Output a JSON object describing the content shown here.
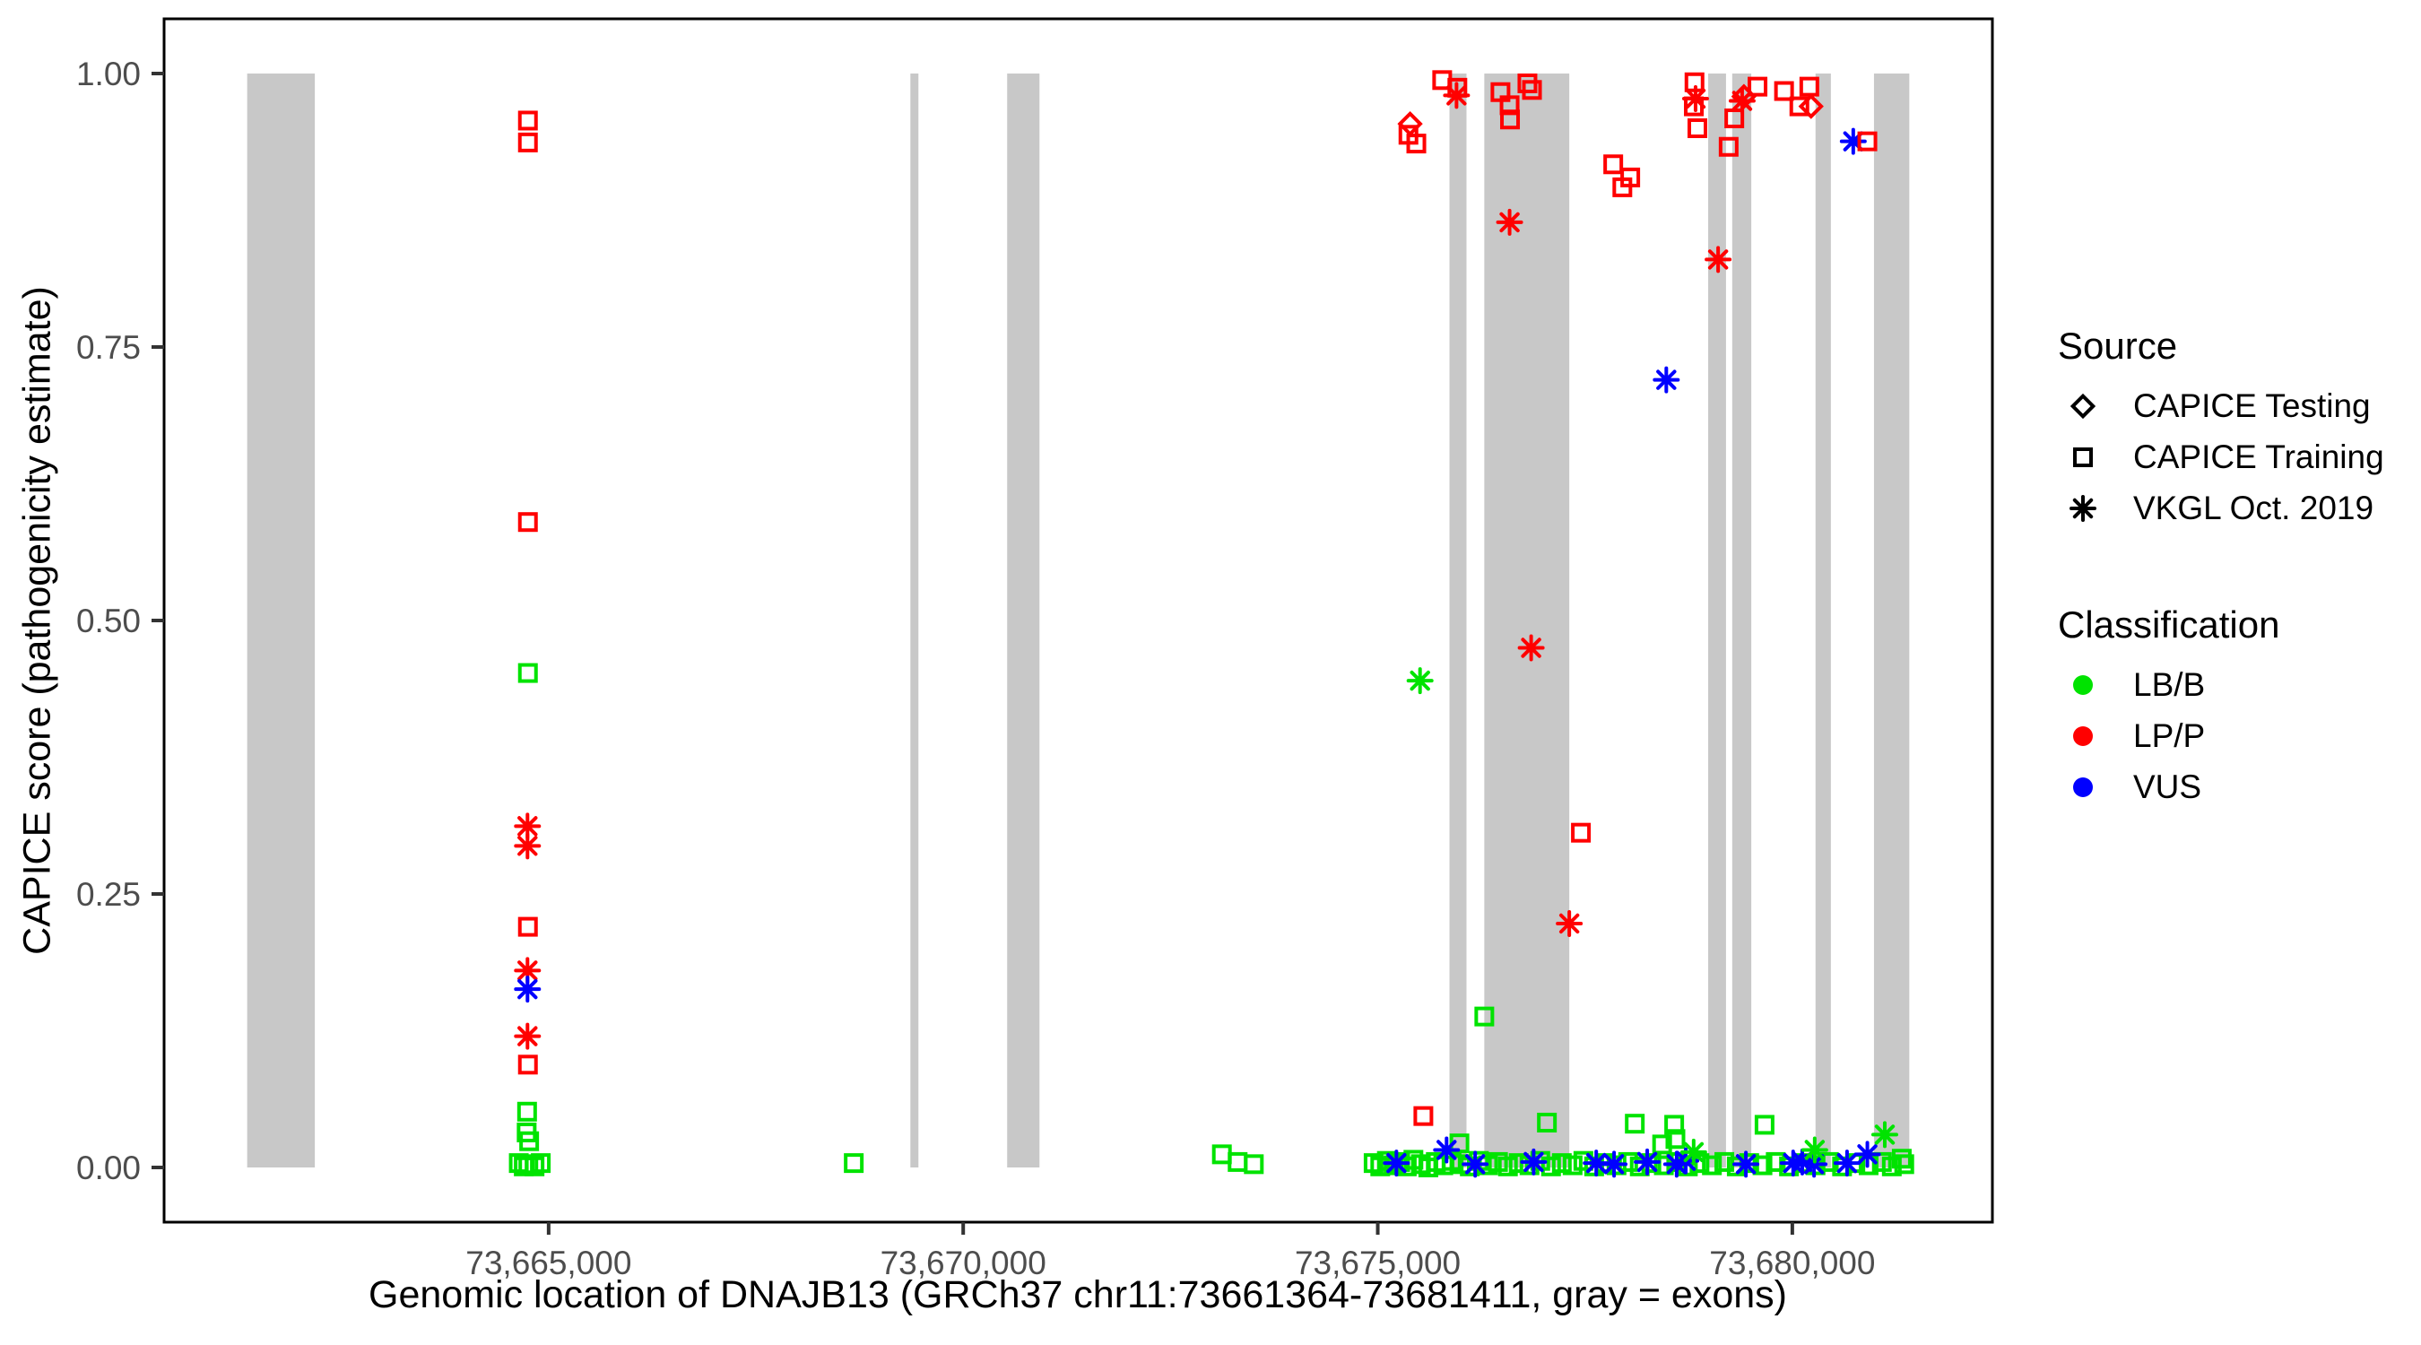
{
  "chart_data": {
    "type": "scatter",
    "title": "",
    "xlabel": "Genomic location of DNAJB13 (GRCh37 chr11:73661364-73681411, gray = exons)",
    "ylabel": "CAPICE score (pathogenicity estimate)",
    "grid": false,
    "x_range": [
      73660362,
      73682413
    ],
    "y_range": [
      -0.05,
      1.05
    ],
    "x_ticks": [
      {
        "label": "73,665,000",
        "value": 73665000
      },
      {
        "label": "73,670,000",
        "value": 73670000
      },
      {
        "label": "73,675,000",
        "value": 73675000
      },
      {
        "label": "73,680,000",
        "value": 73680000
      }
    ],
    "y_ticks": [
      {
        "label": "0.00",
        "value": 0.0
      },
      {
        "label": "0.25",
        "value": 0.25
      },
      {
        "label": "0.50",
        "value": 0.5
      },
      {
        "label": "0.75",
        "value": 0.75
      },
      {
        "label": "1.00",
        "value": 1.0
      }
    ],
    "exon_color": "#C8C8C8",
    "exons": [
      [
        73661364,
        73662180
      ],
      [
        73669363,
        73669460
      ],
      [
        73670530,
        73670920
      ],
      [
        73675865,
        73676070
      ],
      [
        73676285,
        73677310
      ],
      [
        73678985,
        73679200
      ],
      [
        73679275,
        73679505
      ],
      [
        73680280,
        73680465
      ],
      [
        73680985,
        73681411
      ]
    ],
    "class_colors": {
      "LB/B": "#00E300",
      "LP/P": "#FF0000",
      "VUS": "#0000FF"
    },
    "series_columns": [
      "genomic_position",
      "capice_score",
      "marker",
      "classification"
    ],
    "points": [
      [
        73664750,
        0.957,
        "square",
        "LP/P"
      ],
      [
        73664750,
        0.937,
        "square",
        "LP/P"
      ],
      [
        73664750,
        0.59,
        "square",
        "LP/P"
      ],
      [
        73664750,
        0.452,
        "square",
        "LB/B"
      ],
      [
        73664745,
        0.312,
        "asterisk",
        "LP/P"
      ],
      [
        73664745,
        0.294,
        "asterisk",
        "LP/P"
      ],
      [
        73664750,
        0.22,
        "square",
        "LP/P"
      ],
      [
        73664745,
        0.18,
        "asterisk",
        "LP/P"
      ],
      [
        73664745,
        0.163,
        "asterisk",
        "VUS"
      ],
      [
        73664745,
        0.12,
        "asterisk",
        "LP/P"
      ],
      [
        73664750,
        0.094,
        "square",
        "LP/P"
      ],
      [
        73664740,
        0.051,
        "square",
        "LB/B"
      ],
      [
        73664735,
        0.032,
        "square",
        "LB/B"
      ],
      [
        73664765,
        0.024,
        "square",
        "LB/B"
      ],
      [
        73664640,
        0.004,
        "square",
        "LB/B"
      ],
      [
        73664700,
        0.001,
        "square",
        "LB/B"
      ],
      [
        73664755,
        0.003,
        "square",
        "LB/B"
      ],
      [
        73664830,
        0.001,
        "square",
        "LB/B"
      ],
      [
        73664905,
        0.004,
        "square",
        "LB/B"
      ],
      [
        73668680,
        0.004,
        "square",
        "LB/B"
      ],
      [
        73673120,
        0.012,
        "square",
        "LB/B"
      ],
      [
        73673310,
        0.005,
        "square",
        "LB/B"
      ],
      [
        73673505,
        0.003,
        "square",
        "LB/B"
      ],
      [
        73675390,
        0.954,
        "diamond",
        "LP/P"
      ],
      [
        73675370,
        0.944,
        "square",
        "LP/P"
      ],
      [
        73675465,
        0.936,
        "square",
        "LP/P"
      ],
      [
        73675777,
        0.994,
        "square",
        "LP/P"
      ],
      [
        73675960,
        0.987,
        "square",
        "LP/P"
      ],
      [
        73675950,
        0.98,
        "asterisk",
        "LP/P"
      ],
      [
        73676480,
        0.983,
        "square",
        "LP/P"
      ],
      [
        73676590,
        0.971,
        "square",
        "LP/P"
      ],
      [
        73676595,
        0.958,
        "square",
        "LP/P"
      ],
      [
        73676805,
        0.991,
        "square",
        "LP/P"
      ],
      [
        73676860,
        0.985,
        "square",
        "LP/P"
      ],
      [
        73676590,
        0.864,
        "asterisk",
        "LP/P"
      ],
      [
        73676850,
        0.475,
        "asterisk",
        "LP/P"
      ],
      [
        73675510,
        0.445,
        "asterisk",
        "LB/B"
      ],
      [
        73677450,
        0.306,
        "square",
        "LP/P"
      ],
      [
        73677310,
        0.223,
        "asterisk",
        "LP/P"
      ],
      [
        73676285,
        0.138,
        "square",
        "LB/B"
      ],
      [
        73675550,
        0.047,
        "square",
        "LP/P"
      ],
      [
        73677840,
        0.917,
        "square",
        "LP/P"
      ],
      [
        73677950,
        0.896,
        "square",
        "LP/P"
      ],
      [
        73678045,
        0.905,
        "square",
        "LP/P"
      ],
      [
        73678480,
        0.72,
        "asterisk",
        "VUS"
      ],
      [
        73678820,
        0.992,
        "square",
        "LP/P"
      ],
      [
        73678833,
        0.977,
        "asterisk",
        "LP/P"
      ],
      [
        73678812,
        0.97,
        "square",
        "LP/P"
      ],
      [
        73678855,
        0.95,
        "square",
        "LP/P"
      ],
      [
        73679232,
        0.933,
        "square",
        "LP/P"
      ],
      [
        73679300,
        0.959,
        "square",
        "LP/P"
      ],
      [
        73679395,
        0.975,
        "asterisk",
        "LP/P"
      ],
      [
        73679416,
        0.979,
        "diamond",
        "LP/P"
      ],
      [
        73679580,
        0.988,
        "square",
        "LP/P"
      ],
      [
        73679105,
        0.83,
        "asterisk",
        "LP/P"
      ],
      [
        73679900,
        0.984,
        "square",
        "LP/P"
      ],
      [
        73680085,
        0.97,
        "square",
        "LP/P"
      ],
      [
        73680205,
        0.988,
        "square",
        "LP/P"
      ],
      [
        73680226,
        0.97,
        "diamond",
        "LP/P"
      ],
      [
        73680735,
        0.938,
        "asterisk",
        "VUS"
      ],
      [
        73680905,
        0.938,
        "square",
        "LP/P"
      ],
      [
        73674950,
        0.004,
        "square",
        "LB/B"
      ],
      [
        73675030,
        0.001,
        "square",
        "LB/B"
      ],
      [
        73675110,
        0.006,
        "square",
        "LB/B"
      ],
      [
        73675190,
        0.002,
        "square",
        "LB/B"
      ],
      [
        73675270,
        0.005,
        "square",
        "LB/B"
      ],
      [
        73675350,
        0.001,
        "square",
        "LB/B"
      ],
      [
        73675430,
        0.007,
        "square",
        "LB/B"
      ],
      [
        73675520,
        0.003,
        "square",
        "LB/B"
      ],
      [
        73675610,
        0.0,
        "square",
        "LB/B"
      ],
      [
        73675700,
        0.005,
        "square",
        "LB/B"
      ],
      [
        73675790,
        0.002,
        "square",
        "LB/B"
      ],
      [
        73675890,
        0.006,
        "square",
        "LB/B"
      ],
      [
        73675985,
        0.022,
        "square",
        "LB/B"
      ],
      [
        73676000,
        0.003,
        "square",
        "LB/B"
      ],
      [
        73676110,
        0.001,
        "square",
        "LB/B"
      ],
      [
        73676220,
        0.006,
        "square",
        "LB/B"
      ],
      [
        73676330,
        0.002,
        "square",
        "LB/B"
      ],
      [
        73676450,
        0.005,
        "square",
        "LB/B"
      ],
      [
        73676570,
        0.001,
        "square",
        "LB/B"
      ],
      [
        73676700,
        0.004,
        "square",
        "LB/B"
      ],
      [
        73676830,
        0.002,
        "square",
        "LB/B"
      ],
      [
        73676960,
        0.006,
        "square",
        "LB/B"
      ],
      [
        73677040,
        0.041,
        "square",
        "LB/B"
      ],
      [
        73677090,
        0.001,
        "square",
        "LB/B"
      ],
      [
        73677220,
        0.004,
        "square",
        "LB/B"
      ],
      [
        73677350,
        0.002,
        "square",
        "LB/B"
      ],
      [
        73677480,
        0.006,
        "square",
        "LB/B"
      ],
      [
        73677610,
        0.001,
        "square",
        "LB/B"
      ],
      [
        73677740,
        0.004,
        "square",
        "LB/B"
      ],
      [
        73677880,
        0.002,
        "square",
        "LB/B"
      ],
      [
        73678020,
        0.005,
        "square",
        "LB/B"
      ],
      [
        73678100,
        0.04,
        "square",
        "LB/B"
      ],
      [
        73678160,
        0.001,
        "square",
        "LB/B"
      ],
      [
        73678300,
        0.004,
        "square",
        "LB/B"
      ],
      [
        73678430,
        0.021,
        "square",
        "LB/B"
      ],
      [
        73678450,
        0.002,
        "square",
        "LB/B"
      ],
      [
        73678575,
        0.039,
        "square",
        "LB/B"
      ],
      [
        73678590,
        0.026,
        "square",
        "LB/B"
      ],
      [
        73678600,
        0.005,
        "square",
        "LB/B"
      ],
      [
        73678740,
        0.001,
        "square",
        "LB/B"
      ],
      [
        73678880,
        0.004,
        "square",
        "LB/B"
      ],
      [
        73679030,
        0.002,
        "square",
        "LB/B"
      ],
      [
        73679180,
        0.005,
        "square",
        "LB/B"
      ],
      [
        73679330,
        0.001,
        "square",
        "LB/B"
      ],
      [
        73679480,
        0.004,
        "square",
        "LB/B"
      ],
      [
        73679640,
        0.002,
        "square",
        "LB/B"
      ],
      [
        73679665,
        0.039,
        "square",
        "LB/B"
      ],
      [
        73679800,
        0.005,
        "square",
        "LB/B"
      ],
      [
        73679960,
        0.001,
        "square",
        "LB/B"
      ],
      [
        73680120,
        0.004,
        "square",
        "LB/B"
      ],
      [
        73680280,
        0.002,
        "square",
        "LB/B"
      ],
      [
        73680440,
        0.005,
        "square",
        "LB/B"
      ],
      [
        73680600,
        0.001,
        "square",
        "LB/B"
      ],
      [
        73680760,
        0.004,
        "square",
        "LB/B"
      ],
      [
        73680920,
        0.002,
        "square",
        "LB/B"
      ],
      [
        73681080,
        0.005,
        "square",
        "LB/B"
      ],
      [
        73681200,
        0.001,
        "square",
        "LB/B"
      ],
      [
        73681320,
        0.008,
        "square",
        "LB/B"
      ],
      [
        73681350,
        0.003,
        "square",
        "LB/B"
      ],
      [
        73675225,
        0.004,
        "asterisk",
        "VUS"
      ],
      [
        73675830,
        0.016,
        "asterisk",
        "VUS"
      ],
      [
        73676175,
        0.003,
        "asterisk",
        "VUS"
      ],
      [
        73676880,
        0.005,
        "asterisk",
        "VUS"
      ],
      [
        73677635,
        0.004,
        "asterisk",
        "VUS"
      ],
      [
        73677850,
        0.003,
        "asterisk",
        "VUS"
      ],
      [
        73678250,
        0.005,
        "asterisk",
        "VUS"
      ],
      [
        73678605,
        0.003,
        "asterisk",
        "VUS"
      ],
      [
        73678715,
        0.006,
        "asterisk",
        "VUS"
      ],
      [
        73679440,
        0.003,
        "asterisk",
        "VUS"
      ],
      [
        73680010,
        0.004,
        "asterisk",
        "VUS"
      ],
      [
        73680120,
        0.005,
        "asterisk",
        "VUS"
      ],
      [
        73680262,
        0.003,
        "asterisk",
        "VUS"
      ],
      [
        73680660,
        0.004,
        "asterisk",
        "VUS"
      ],
      [
        73680905,
        0.012,
        "asterisk",
        "VUS"
      ],
      [
        73678810,
        0.014,
        "asterisk",
        "LB/B"
      ],
      [
        73680270,
        0.016,
        "asterisk",
        "LB/B"
      ],
      [
        73681115,
        0.03,
        "asterisk",
        "LB/B"
      ]
    ]
  },
  "axes": {
    "x_title": "Genomic location of DNAJB13 (GRCh37 chr11:73661364-73681411, gray = exons)",
    "y_title": "CAPICE score (pathogenicity estimate)"
  },
  "legend": {
    "source": {
      "title": "Source",
      "items": [
        {
          "label": "CAPICE Testing",
          "marker": "diamond"
        },
        {
          "label": "CAPICE Training",
          "marker": "square"
        },
        {
          "label": "VKGL Oct. 2019",
          "marker": "asterisk"
        }
      ]
    },
    "classification": {
      "title": "Classification",
      "items": [
        {
          "label": "LB/B",
          "color": "#00E300"
        },
        {
          "label": "LP/P",
          "color": "#FF0000"
        },
        {
          "label": "VUS",
          "color": "#0000FF"
        }
      ]
    }
  }
}
